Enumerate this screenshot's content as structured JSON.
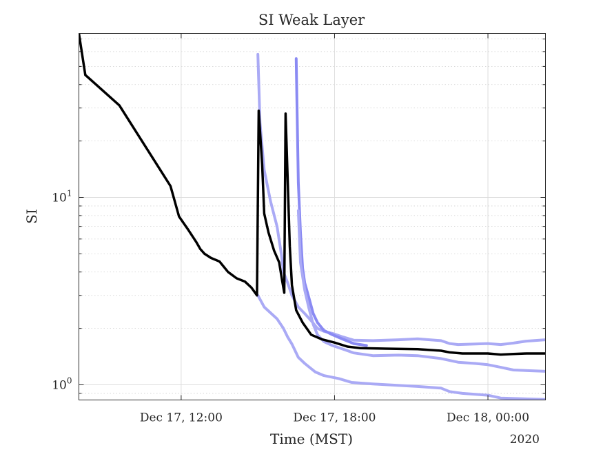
{
  "chart_data": {
    "type": "line",
    "title": "SI Weak Layer",
    "xlabel": "Time (MST)",
    "ylabel": "SI",
    "x_year_label": "2020",
    "y_scale": "log",
    "ylim": [
      0.83,
      75
    ],
    "xlim": [
      "2020-12-17 08:00",
      "2020-12-18 02:15"
    ],
    "x_ticks": [
      {
        "value": "2020-12-17 12:00",
        "label": "Dec 17, 12:00"
      },
      {
        "value": "2020-12-17 18:00",
        "label": "Dec 17, 18:00"
      },
      {
        "value": "2020-12-18 00:00",
        "label": "Dec 18, 00:00"
      }
    ],
    "y_ticks": [
      {
        "value": 1,
        "base": "10",
        "exp": "0"
      },
      {
        "value": 10,
        "base": "10",
        "exp": "1"
      }
    ],
    "grid": true,
    "series": [
      {
        "color": "#aaaaf5",
        "points": [
          [
            "2020-12-17 15:00",
            58
          ],
          [
            "2020-12-17 15:05",
            25
          ],
          [
            "2020-12-17 15:15",
            14
          ],
          [
            "2020-12-17 15:30",
            9.5
          ],
          [
            "2020-12-17 15:45",
            7
          ],
          [
            "2020-12-17 15:55",
            5
          ],
          [
            "2020-12-17 16:00",
            4
          ],
          [
            "2020-12-17 16:10",
            3.5
          ],
          [
            "2020-12-17 16:20",
            3.0
          ],
          [
            "2020-12-17 16:35",
            2.6
          ],
          [
            "2020-12-17 16:50",
            2.4
          ],
          [
            "2020-12-17 17:05",
            2.2
          ],
          [
            "2020-12-17 17:20",
            2.0
          ],
          [
            "2020-12-17 17:35",
            1.93
          ],
          [
            "2020-12-17 17:55",
            1.88
          ],
          [
            "2020-12-17 18:20",
            1.8
          ],
          [
            "2020-12-17 18:45",
            1.73
          ],
          [
            "2020-12-17 19:30",
            1.72
          ],
          [
            "2020-12-17 20:30",
            1.74
          ],
          [
            "2020-12-17 21:15",
            1.76
          ],
          [
            "2020-12-17 22:10",
            1.72
          ],
          [
            "2020-12-17 22:30",
            1.66
          ],
          [
            "2020-12-17 22:50",
            1.64
          ],
          [
            "2020-12-17 23:30",
            1.65
          ],
          [
            "2020-12-18 00:00",
            1.66
          ],
          [
            "2020-12-18 00:30",
            1.64
          ],
          [
            "2020-12-18 01:00",
            1.67
          ],
          [
            "2020-12-18 01:30",
            1.71
          ],
          [
            "2020-12-18 02:15",
            1.74
          ]
        ]
      },
      {
        "color": "#aaaaf5",
        "points": [
          [
            "2020-12-17 15:00",
            3.0
          ],
          [
            "2020-12-17 15:15",
            2.6
          ],
          [
            "2020-12-17 15:45",
            2.25
          ],
          [
            "2020-12-17 16:00",
            2.0
          ],
          [
            "2020-12-17 16:10",
            1.8
          ],
          [
            "2020-12-17 16:20",
            1.65
          ],
          [
            "2020-12-17 16:35",
            1.4
          ],
          [
            "2020-12-17 16:50",
            1.3
          ],
          [
            "2020-12-17 17:15",
            1.17
          ],
          [
            "2020-12-17 17:35",
            1.12
          ],
          [
            "2020-12-17 18:10",
            1.08
          ],
          [
            "2020-12-17 18:40",
            1.03
          ],
          [
            "2020-12-17 19:30",
            1.01
          ],
          [
            "2020-12-17 21:15",
            0.98
          ],
          [
            "2020-12-17 22:10",
            0.96
          ],
          [
            "2020-12-17 22:30",
            0.92
          ],
          [
            "2020-12-17 23:00",
            0.9
          ],
          [
            "2020-12-18 00:00",
            0.88
          ],
          [
            "2020-12-18 00:30",
            0.85
          ],
          [
            "2020-12-18 02:15",
            0.835
          ]
        ]
      },
      {
        "color": "#8a8af3",
        "points": [
          [
            "2020-12-17 16:30",
            55
          ],
          [
            "2020-12-17 16:35",
            12
          ],
          [
            "2020-12-17 16:40",
            6.5
          ],
          [
            "2020-12-17 16:45",
            4.2
          ],
          [
            "2020-12-17 16:50",
            3.5
          ],
          [
            "2020-12-17 17:00",
            2.9
          ],
          [
            "2020-12-17 17:10",
            2.4
          ],
          [
            "2020-12-17 17:20",
            2.15
          ],
          [
            "2020-12-17 17:35",
            1.95
          ],
          [
            "2020-12-17 17:55",
            1.85
          ],
          [
            "2020-12-17 18:20",
            1.75
          ],
          [
            "2020-12-17 18:45",
            1.66
          ],
          [
            "2020-12-17 19:15",
            1.62
          ]
        ]
      },
      {
        "color": "#aaaaf5",
        "points": [
          [
            "2020-12-17 16:35",
            8.5
          ],
          [
            "2020-12-17 16:40",
            4.5
          ],
          [
            "2020-12-17 16:50",
            3.2
          ],
          [
            "2020-12-17 17:00",
            2.55
          ],
          [
            "2020-12-17 17:10",
            2.1
          ],
          [
            "2020-12-17 17:20",
            1.85
          ],
          [
            "2020-12-17 17:35",
            1.7
          ],
          [
            "2020-12-17 17:55",
            1.62
          ],
          [
            "2020-12-17 18:20",
            1.55
          ],
          [
            "2020-12-17 18:45",
            1.48
          ],
          [
            "2020-12-17 19:30",
            1.43
          ],
          [
            "2020-12-17 20:30",
            1.44
          ],
          [
            "2020-12-17 21:15",
            1.43
          ],
          [
            "2020-12-17 22:10",
            1.38
          ],
          [
            "2020-12-17 22:50",
            1.32
          ],
          [
            "2020-12-17 23:30",
            1.3
          ],
          [
            "2020-12-18 00:00",
            1.28
          ],
          [
            "2020-12-18 00:30",
            1.24
          ],
          [
            "2020-12-18 01:00",
            1.2
          ],
          [
            "2020-12-18 02:15",
            1.18
          ]
        ]
      },
      {
        "color": "#000000",
        "points": [
          [
            "2020-12-17 08:00",
            75
          ],
          [
            "2020-12-17 08:15",
            45
          ],
          [
            "2020-12-17 09:35",
            31
          ],
          [
            "2020-12-17 11:35",
            11.5
          ],
          [
            "2020-12-17 11:55",
            7.9
          ],
          [
            "2020-12-17 12:15",
            6.8
          ],
          [
            "2020-12-17 12:35",
            5.8
          ],
          [
            "2020-12-17 12:45",
            5.3
          ],
          [
            "2020-12-17 12:55",
            5.0
          ],
          [
            "2020-12-17 13:10",
            4.75
          ],
          [
            "2020-12-17 13:30",
            4.55
          ],
          [
            "2020-12-17 13:50",
            4.0
          ],
          [
            "2020-12-17 14:10",
            3.7
          ],
          [
            "2020-12-17 14:30",
            3.55
          ],
          [
            "2020-12-17 14:45",
            3.3
          ],
          [
            "2020-12-17 14:58",
            3.0
          ],
          [
            "2020-12-17 15:02",
            29
          ],
          [
            "2020-12-17 15:10",
            15
          ],
          [
            "2020-12-17 15:15",
            8.2
          ],
          [
            "2020-12-17 15:25",
            6.5
          ],
          [
            "2020-12-17 15:38",
            5.2
          ],
          [
            "2020-12-17 15:50",
            4.5
          ],
          [
            "2020-12-17 15:57",
            3.6
          ],
          [
            "2020-12-17 16:02",
            3.1
          ],
          [
            "2020-12-17 16:05",
            28
          ],
          [
            "2020-12-17 16:15",
            5.5
          ],
          [
            "2020-12-17 16:20",
            3.4
          ],
          [
            "2020-12-17 16:30",
            2.5
          ],
          [
            "2020-12-17 16:45",
            2.15
          ],
          [
            "2020-12-17 17:05",
            1.85
          ],
          [
            "2020-12-17 17:30",
            1.75
          ],
          [
            "2020-12-17 18:00",
            1.68
          ],
          [
            "2020-12-17 18:30",
            1.6
          ],
          [
            "2020-12-17 19:00",
            1.57
          ],
          [
            "2020-12-17 20:00",
            1.56
          ],
          [
            "2020-12-17 21:15",
            1.55
          ],
          [
            "2020-12-17 22:10",
            1.52
          ],
          [
            "2020-12-17 22:30",
            1.49
          ],
          [
            "2020-12-17 23:00",
            1.47
          ],
          [
            "2020-12-18 00:00",
            1.47
          ],
          [
            "2020-12-18 00:30",
            1.45
          ],
          [
            "2020-12-18 01:00",
            1.46
          ],
          [
            "2020-12-18 01:30",
            1.47
          ],
          [
            "2020-12-18 02:15",
            1.47
          ]
        ]
      }
    ]
  }
}
